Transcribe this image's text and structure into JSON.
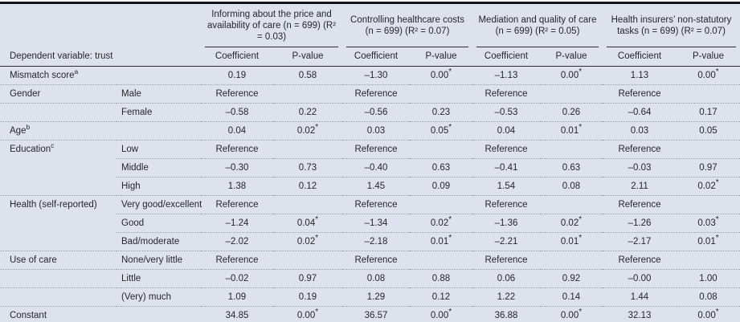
{
  "table": {
    "dependent_variable_label": "Dependent variable: trust",
    "column_groups": [
      {
        "title": "Informing about the price and availability of care (n = 699) (R² = 0.03)"
      },
      {
        "title": "Controlling healthcare costs (n = 699) (R² = 0.07)"
      },
      {
        "title": "Mediation and quality of care (n = 699) (R² = 0.05)"
      },
      {
        "title": "Health insurers’ non-statutory tasks (n = 699) (R² = 0.07)"
      }
    ],
    "sub_headers": {
      "coefficient": "Coefficient",
      "p_value": "P-value"
    },
    "reference_label": "Reference",
    "rows": [
      {
        "label": "Mismatch score",
        "label_sup": "a",
        "category": "",
        "separator": null,
        "cells": [
          "0.19",
          "0.58",
          "–1.30",
          "0.00*",
          "–1.13",
          "0.00*",
          "1.13",
          "0.00*"
        ]
      },
      {
        "label": "Gender",
        "label_sup": "",
        "category": "Male",
        "separator": "full",
        "cells": [
          "Reference",
          "",
          "Reference",
          "",
          "Reference",
          "",
          "Reference",
          ""
        ]
      },
      {
        "label": "",
        "label_sup": "",
        "category": "Female",
        "separator": "full",
        "cells": [
          "–0.58",
          "0.22",
          "–0.56",
          "0.23",
          "–0.53",
          "0.26",
          "–0.64",
          "0.17"
        ]
      },
      {
        "label": "Age",
        "label_sup": "b",
        "category": "",
        "separator": "full",
        "cells": [
          "0.04",
          "0.02*",
          "0.03",
          "0.05*",
          "0.04",
          "0.01*",
          "0.03",
          "0.05"
        ]
      },
      {
        "label": "Education",
        "label_sup": "c",
        "category": "Low",
        "separator": "full",
        "cells": [
          "Reference",
          "",
          "Reference",
          "",
          "Reference",
          "",
          "Reference",
          ""
        ]
      },
      {
        "label": "",
        "label_sup": "",
        "category": "Middle",
        "separator": "indent",
        "cells": [
          "–0.30",
          "0.73",
          "–0.40",
          "0.63",
          "–0.41",
          "0.63",
          "–0.03",
          "0.97"
        ]
      },
      {
        "label": "",
        "label_sup": "",
        "category": "High",
        "separator": "indent",
        "cells": [
          "1.38",
          "0.12",
          "1.45",
          "0.09",
          "1.54",
          "0.08",
          "2.11",
          "0.02*"
        ]
      },
      {
        "label": "Health (self-reported)",
        "label_sup": "",
        "category": "Very good/excellent",
        "separator": "full",
        "cells": [
          "Reference",
          "",
          "Reference",
          "",
          "Reference",
          "",
          "Reference",
          ""
        ]
      },
      {
        "label": "",
        "label_sup": "",
        "category": "Good",
        "separator": "indent",
        "cells": [
          "–1.24",
          "0.04*",
          "–1.34",
          "0.02*",
          "–1.36",
          "0.02*",
          "–1.26",
          "0.03*"
        ]
      },
      {
        "label": "",
        "label_sup": "",
        "category": "Bad/moderate",
        "separator": "indent",
        "cells": [
          "–2.02",
          "0.02*",
          "–2.18",
          "0.01*",
          "–2.21",
          "0.01*",
          "–2.17",
          "0.01*"
        ]
      },
      {
        "label": "Use of care",
        "label_sup": "",
        "category": "None/very little",
        "separator": "full",
        "cells": [
          "Reference",
          "",
          "Reference",
          "",
          "Reference",
          "",
          "Reference",
          ""
        ]
      },
      {
        "label": "",
        "label_sup": "",
        "category": "Little",
        "separator": "full",
        "cells": [
          "–0.02",
          "0.97",
          "0.08",
          "0.88",
          "0.06",
          "0.92",
          "–0.00",
          "1.00"
        ]
      },
      {
        "label": "",
        "label_sup": "",
        "category": "(Very) much",
        "separator": "full",
        "cells": [
          "1.09",
          "0.19",
          "1.29",
          "0.12",
          "1.22",
          "0.14",
          "1.44",
          "0.08"
        ]
      },
      {
        "label": "Constant",
        "label_sup": "",
        "category": "",
        "separator": "full",
        "cells": [
          "34.85",
          "0.00*",
          "36.57",
          "0.00*",
          "36.88",
          "0.00*",
          "32.13",
          "0.00*"
        ]
      }
    ],
    "colors": {
      "background": "#dce3ee",
      "text": "#24272e",
      "solid_rule": "#2a2c33",
      "dotted_rule": "#959daa",
      "outer_border": "#14151a"
    }
  }
}
